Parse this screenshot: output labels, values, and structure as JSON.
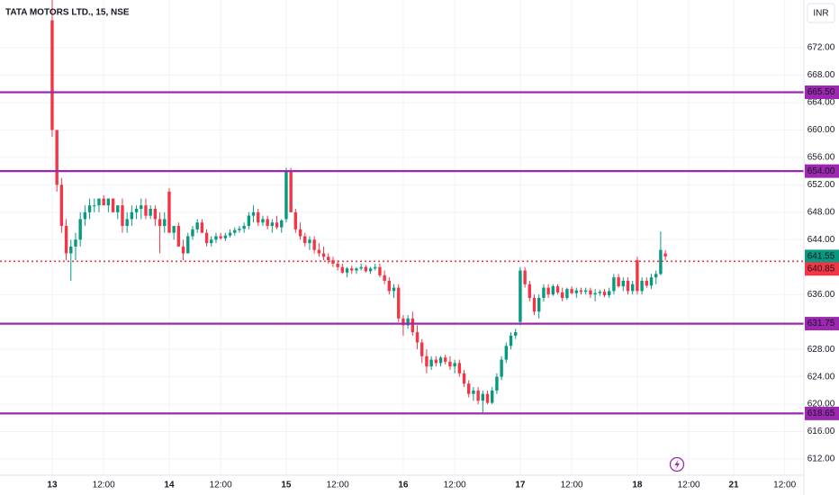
{
  "chart_data": {
    "type": "candlestick",
    "title": "TATA MOTORS LTD., 15, NSE",
    "currency": "INR",
    "up_color": "#089981",
    "down_color": "#f23645",
    "level_color": "#9c27b0",
    "grid": true,
    "xlim": [
      -11.15,
      160.6
    ],
    "ylim": [
      609.64,
      678.96
    ],
    "yticks": [
      {
        "value": 612,
        "label": "612.00"
      },
      {
        "value": 616,
        "label": "616.00"
      },
      {
        "value": 620,
        "label": "620.00"
      },
      {
        "value": 624,
        "label": "624.00"
      },
      {
        "value": 628,
        "label": "628.00"
      },
      {
        "value": 636,
        "label": "636.00"
      },
      {
        "value": 644,
        "label": "644.00"
      },
      {
        "value": 648,
        "label": "648.00"
      },
      {
        "value": 652,
        "label": "652.00"
      },
      {
        "value": 656,
        "label": "656.00"
      },
      {
        "value": 660,
        "label": "660.00"
      },
      {
        "value": 664,
        "label": "664.00"
      },
      {
        "value": 668,
        "label": "668.00"
      },
      {
        "value": 672,
        "label": "672.00"
      }
    ],
    "xticks": [
      {
        "value": 0,
        "label": "13"
      },
      {
        "value": 11,
        "label": "12:00"
      },
      {
        "value": 25,
        "label": "14"
      },
      {
        "value": 36,
        "label": "12:00"
      },
      {
        "value": 50,
        "label": "15"
      },
      {
        "value": 61,
        "label": "12:00"
      },
      {
        "value": 75,
        "label": "16"
      },
      {
        "value": 86,
        "label": "12:00"
      },
      {
        "value": 100,
        "label": "17"
      },
      {
        "value": 111,
        "label": "12:00"
      },
      {
        "value": 125,
        "label": "18"
      },
      {
        "value": 136,
        "label": "12:00"
      },
      {
        "value": 145.6,
        "label": "21"
      },
      {
        "value": 156.5,
        "label": "12:00"
      }
    ],
    "levels": [
      {
        "value": 665.5,
        "label": "665.50"
      },
      {
        "value": 654,
        "label": "654.00"
      },
      {
        "value": 631.75,
        "label": "631.75"
      },
      {
        "value": 618.65,
        "label": "618.65"
      }
    ],
    "last_price": {
      "value": 641.55,
      "label": "641.55"
    },
    "price_line": {
      "value": 640.85,
      "label": "640.85"
    },
    "ohlc": [
      [
        676,
        680,
        659,
        660
      ],
      [
        660,
        660,
        651,
        652
      ],
      [
        652,
        653,
        645,
        646
      ],
      [
        646,
        647,
        641,
        642
      ],
      [
        642,
        644,
        638,
        643
      ],
      [
        643,
        645,
        641,
        644
      ],
      [
        644,
        648,
        643,
        647
      ],
      [
        647,
        649,
        646,
        648
      ],
      [
        648,
        650,
        647,
        649
      ],
      [
        649,
        650,
        648,
        649
      ],
      [
        649,
        650,
        648,
        650
      ],
      [
        650,
        650.5,
        649,
        649
      ],
      [
        649,
        650,
        648,
        650
      ],
      [
        650,
        650,
        648,
        648
      ],
      [
        648,
        649,
        647,
        649
      ],
      [
        649,
        650,
        645,
        646
      ],
      [
        646,
        648,
        645,
        647
      ],
      [
        647,
        649,
        646,
        648
      ],
      [
        648,
        649,
        647,
        648.5
      ],
      [
        648.5,
        650,
        647,
        649
      ],
      [
        649,
        650,
        647,
        647.5
      ],
      [
        647.5,
        649,
        647,
        648.5
      ],
      [
        648.5,
        649,
        646,
        647
      ],
      [
        647,
        648,
        642,
        646
      ],
      [
        646,
        648,
        645,
        647
      ],
      [
        651,
        651.5,
        645,
        645
      ],
      [
        645,
        646,
        644,
        646
      ],
      [
        646,
        646.5,
        643,
        643
      ],
      [
        643,
        644,
        641,
        642
      ],
      [
        642,
        645,
        642,
        644.5
      ],
      [
        644.5,
        646,
        644,
        645.5
      ],
      [
        645.5,
        647,
        645,
        646.5
      ],
      [
        646.5,
        647,
        645,
        645
      ],
      [
        645,
        645.5,
        643,
        643.5
      ],
      [
        643.5,
        644.5,
        643,
        644
      ],
      [
        644,
        645,
        643.5,
        644.5
      ],
      [
        644.5,
        645,
        644,
        644.2
      ],
      [
        644.2,
        645,
        643.8,
        644.6
      ],
      [
        644.6,
        645.5,
        644.3,
        645
      ],
      [
        645,
        645.8,
        644.6,
        645.4
      ],
      [
        645.4,
        646,
        645,
        645.6
      ],
      [
        645.6,
        646.5,
        645,
        646
      ],
      [
        646,
        648,
        645.5,
        647.5
      ],
      [
        647.5,
        649,
        646.5,
        648
      ],
      [
        648,
        648.5,
        646,
        646.5
      ],
      [
        646.5,
        647.5,
        646,
        647
      ],
      [
        647,
        647.5,
        645.5,
        646
      ],
      [
        646,
        647,
        645,
        646.5
      ],
      [
        646.5,
        647.5,
        645.5,
        645.8
      ],
      [
        645.8,
        647,
        645,
        646.8
      ],
      [
        647,
        654.5,
        646.5,
        654
      ],
      [
        654,
        654.5,
        648,
        648
      ],
      [
        648,
        648.5,
        645,
        645.5
      ],
      [
        645.5,
        646.5,
        644,
        644.5
      ],
      [
        644.5,
        645,
        643,
        643.5
      ],
      [
        643.5,
        644.5,
        642.5,
        644
      ],
      [
        644,
        644.5,
        642,
        642.5
      ],
      [
        642.5,
        643.5,
        641.5,
        642
      ],
      [
        642,
        643,
        641,
        641.5
      ],
      [
        641.5,
        642,
        640.5,
        641
      ],
      [
        641,
        641.5,
        640,
        640.5
      ],
      [
        640.5,
        641,
        639.5,
        640
      ],
      [
        640,
        640.5,
        639,
        639.2
      ],
      [
        639.2,
        640,
        638.5,
        639.8
      ],
      [
        639.8,
        640.2,
        639,
        639.5
      ],
      [
        639.5,
        640,
        639,
        639.8
      ],
      [
        639.8,
        640.5,
        639.5,
        640
      ],
      [
        640,
        640.3,
        639.2,
        639.4
      ],
      [
        639.4,
        640,
        639,
        639.8
      ],
      [
        639.8,
        640.5,
        639.5,
        640
      ],
      [
        640,
        640.5,
        638.5,
        638.8
      ],
      [
        638.8,
        639.5,
        637.5,
        638
      ],
      [
        638,
        638.5,
        636,
        636.5
      ],
      [
        636.5,
        637.5,
        635.5,
        637
      ],
      [
        637,
        637.5,
        632,
        632.5
      ],
      [
        632.5,
        633,
        630,
        631.5
      ],
      [
        631.5,
        633,
        631,
        632.5
      ],
      [
        632.5,
        633.5,
        630,
        630.5
      ],
      [
        630.5,
        631.5,
        628,
        629
      ],
      [
        629,
        629.5,
        626,
        627
      ],
      [
        627,
        628,
        624.5,
        625.5
      ],
      [
        625.5,
        627,
        625,
        626.5
      ],
      [
        626.5,
        627,
        625.5,
        626
      ],
      [
        626,
        627,
        625.5,
        626.8
      ],
      [
        626.8,
        627.2,
        625.8,
        626.2
      ],
      [
        626.2,
        627,
        625,
        625.5
      ],
      [
        625.5,
        626.5,
        624.5,
        626
      ],
      [
        626,
        626.5,
        624,
        624.5
      ],
      [
        624.5,
        625,
        622.5,
        623
      ],
      [
        623,
        623.5,
        621,
        621.5
      ],
      [
        621.5,
        622.5,
        620.5,
        622
      ],
      [
        622,
        622.5,
        620,
        620.5
      ],
      [
        620.5,
        622,
        618.8,
        621.5
      ],
      [
        621.5,
        622,
        620,
        620.2
      ],
      [
        620.2,
        622.5,
        620,
        622
      ],
      [
        622,
        624.5,
        621.5,
        624
      ],
      [
        624,
        627,
        623.5,
        626.5
      ],
      [
        626.5,
        629,
        626,
        628.5
      ],
      [
        628.5,
        630.5,
        628,
        630
      ],
      [
        630,
        631,
        629.5,
        630.5
      ],
      [
        632,
        640,
        631.5,
        639.5
      ],
      [
        639.5,
        640,
        637,
        637.5
      ],
      [
        637.5,
        638,
        635,
        635.5
      ],
      [
        635.5,
        636,
        633,
        633.5
      ],
      [
        633.5,
        636,
        632.5,
        635.5
      ],
      [
        635.5,
        637.5,
        635,
        637
      ],
      [
        637,
        637.5,
        635.5,
        636
      ],
      [
        636,
        637.5,
        635.8,
        637.2
      ],
      [
        637.2,
        637.5,
        636,
        636.3
      ],
      [
        636.3,
        637,
        635,
        635.5
      ],
      [
        635.5,
        637,
        635.2,
        636.8
      ],
      [
        636.8,
        637.2,
        636,
        636.2
      ],
      [
        636.2,
        637,
        635.5,
        636.6
      ],
      [
        636.6,
        637,
        636,
        636.4
      ],
      [
        636.4,
        637,
        636,
        636.6
      ],
      [
        636.6,
        637,
        635.5,
        636
      ],
      [
        636,
        636.8,
        635,
        636.2
      ],
      [
        636.2,
        636.7,
        635.8,
        636.4
      ],
      [
        636.4,
        636.8,
        635.6,
        635.9
      ],
      [
        635.9,
        637,
        635.5,
        636.5
      ],
      [
        636.5,
        639,
        636,
        638.5
      ],
      [
        638.5,
        639,
        637,
        637.2
      ],
      [
        637.2,
        638.5,
        636.5,
        638
      ],
      [
        638,
        638.5,
        636,
        636.5
      ],
      [
        636.5,
        638,
        636,
        637.5
      ],
      [
        641,
        641.5,
        636,
        636.5
      ],
      [
        636.5,
        638.5,
        636,
        638
      ],
      [
        638,
        638.5,
        637,
        637.3
      ],
      [
        637.3,
        639,
        636.8,
        638.5
      ],
      [
        638.5,
        639.5,
        637.5,
        639
      ],
      [
        639,
        645.2,
        638.8,
        642.5
      ],
      [
        642,
        642.5,
        641,
        641.55
      ]
    ]
  }
}
